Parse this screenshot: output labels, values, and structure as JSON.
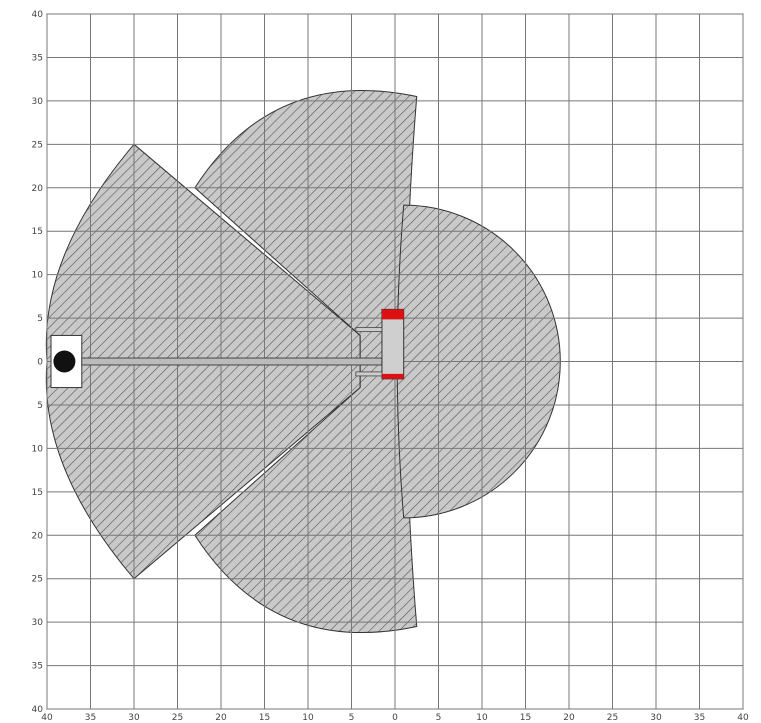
{
  "chart_data": {
    "type": "area",
    "title": "",
    "xlabel": "",
    "ylabel": "",
    "xlim": [
      -40,
      40
    ],
    "ylim": [
      -40,
      40
    ],
    "grid": true,
    "xticks": [
      40,
      35,
      30,
      25,
      20,
      15,
      10,
      5,
      0,
      5,
      10,
      15,
      20,
      25,
      30,
      35,
      40
    ],
    "yticks": [
      40,
      35,
      30,
      25,
      20,
      15,
      10,
      5,
      0,
      5,
      10,
      15,
      20,
      25,
      30,
      35,
      40
    ],
    "zones": [
      {
        "shape": "sector",
        "center": [
          -30,
          25
        ],
        "start": [
          -40,
          -1
        ],
        "end": [
          -40,
          1
        ],
        "corners": [
          [
            -30,
            25
          ],
          [
            -30,
            -25
          ]
        ]
      },
      {
        "shape": "large-sector",
        "x_extent": [
          -24,
          2.5
        ],
        "y_extent": [
          -30.5,
          30.5
        ]
      },
      {
        "shape": "right-semicircle",
        "x_extent": [
          0,
          18
        ],
        "y_extent": [
          -18,
          18
        ]
      }
    ],
    "vehicle": {
      "x_extent": [
        -1.5,
        1
      ],
      "y_extent": [
        -2,
        6
      ]
    },
    "load_point": [
      -38,
      0
    ],
    "colors": {
      "hatch": "#555555",
      "fill": "#c8c8c8",
      "vehicle": "#dd1111",
      "load": "#111111",
      "grid": "#777777"
    }
  }
}
